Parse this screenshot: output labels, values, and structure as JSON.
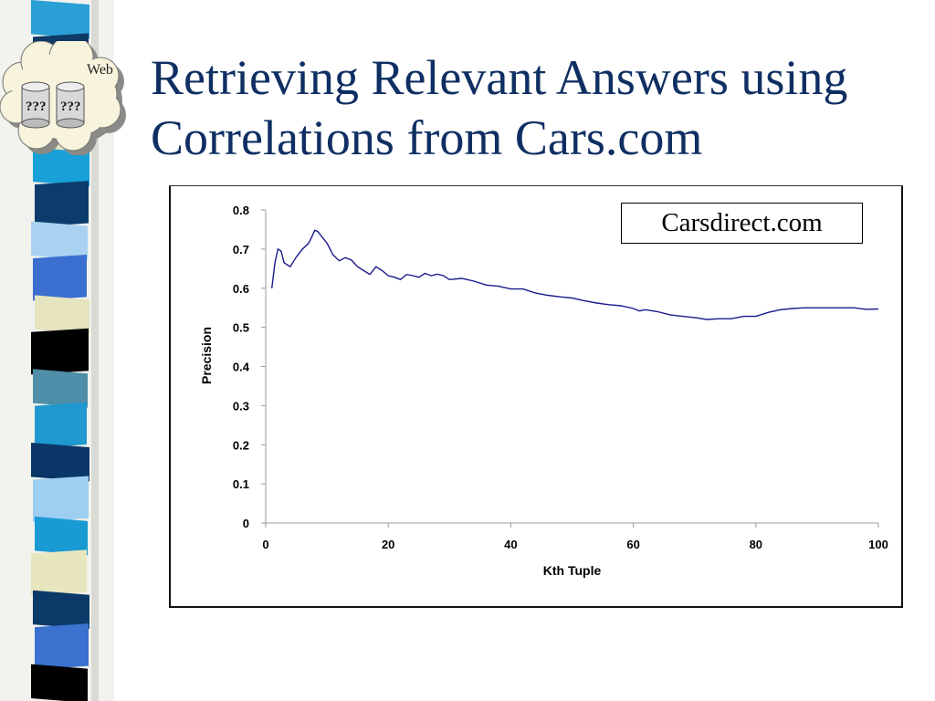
{
  "slide": {
    "title_line1": "Retrieving Relevant Answers using",
    "title_line2": "Correlations from Cars.com",
    "logo": {
      "label": "Web",
      "db_labels": [
        "???",
        "???"
      ]
    }
  },
  "chart_data": {
    "type": "line",
    "annotation": "Carsdirect.com",
    "xlabel": "Kth Tuple",
    "ylabel": "Precision",
    "xlim": [
      0,
      100
    ],
    "ylim": [
      0,
      0.8
    ],
    "xticks": [
      0,
      20,
      40,
      60,
      80,
      100
    ],
    "yticks": [
      0,
      0.1,
      0.2,
      0.3,
      0.4,
      0.5,
      0.6,
      0.7,
      0.8
    ],
    "grid": false,
    "series": [
      {
        "color": "#1a1a8c",
        "x": [
          1,
          1.5,
          2,
          2.5,
          3,
          4,
          5,
          6,
          7,
          7.5,
          8,
          8.5,
          9,
          10,
          11,
          12,
          13,
          14,
          15,
          16,
          17,
          18,
          19,
          20,
          21,
          22,
          23,
          24,
          25,
          26,
          27,
          28,
          29,
          30,
          32,
          34,
          36,
          38,
          40,
          42,
          44,
          46,
          48,
          50,
          52,
          54,
          56,
          58,
          60,
          61,
          62,
          64,
          66,
          68,
          70,
          72,
          74,
          76,
          78,
          80,
          82,
          84,
          86,
          88,
          90,
          92,
          94,
          96,
          98,
          100
        ],
        "y": [
          0.6,
          0.665,
          0.7,
          0.695,
          0.665,
          0.655,
          0.68,
          0.7,
          0.715,
          0.73,
          0.748,
          0.745,
          0.735,
          0.715,
          0.685,
          0.67,
          0.678,
          0.672,
          0.655,
          0.645,
          0.635,
          0.655,
          0.645,
          0.632,
          0.628,
          0.622,
          0.635,
          0.632,
          0.628,
          0.638,
          0.632,
          0.636,
          0.632,
          0.622,
          0.625,
          0.618,
          0.608,
          0.605,
          0.598,
          0.598,
          0.588,
          0.582,
          0.578,
          0.575,
          0.568,
          0.562,
          0.558,
          0.555,
          0.548,
          0.542,
          0.545,
          0.54,
          0.532,
          0.528,
          0.525,
          0.52,
          0.522,
          0.522,
          0.528,
          0.528,
          0.538,
          0.545,
          0.548,
          0.55,
          0.55,
          0.55,
          0.55,
          0.55,
          0.546,
          0.547
        ]
      }
    ]
  }
}
